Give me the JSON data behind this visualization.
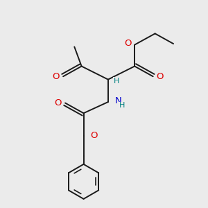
{
  "bg_color": "#ebebeb",
  "bond_color": "#1a1a1a",
  "bond_width": 1.4,
  "atom_colors": {
    "O": "#dd0000",
    "N": "#0000cc",
    "H": "#008080",
    "C": "#1a1a1a"
  },
  "font_size_atoms": 9.5,
  "font_size_h": 8.0
}
